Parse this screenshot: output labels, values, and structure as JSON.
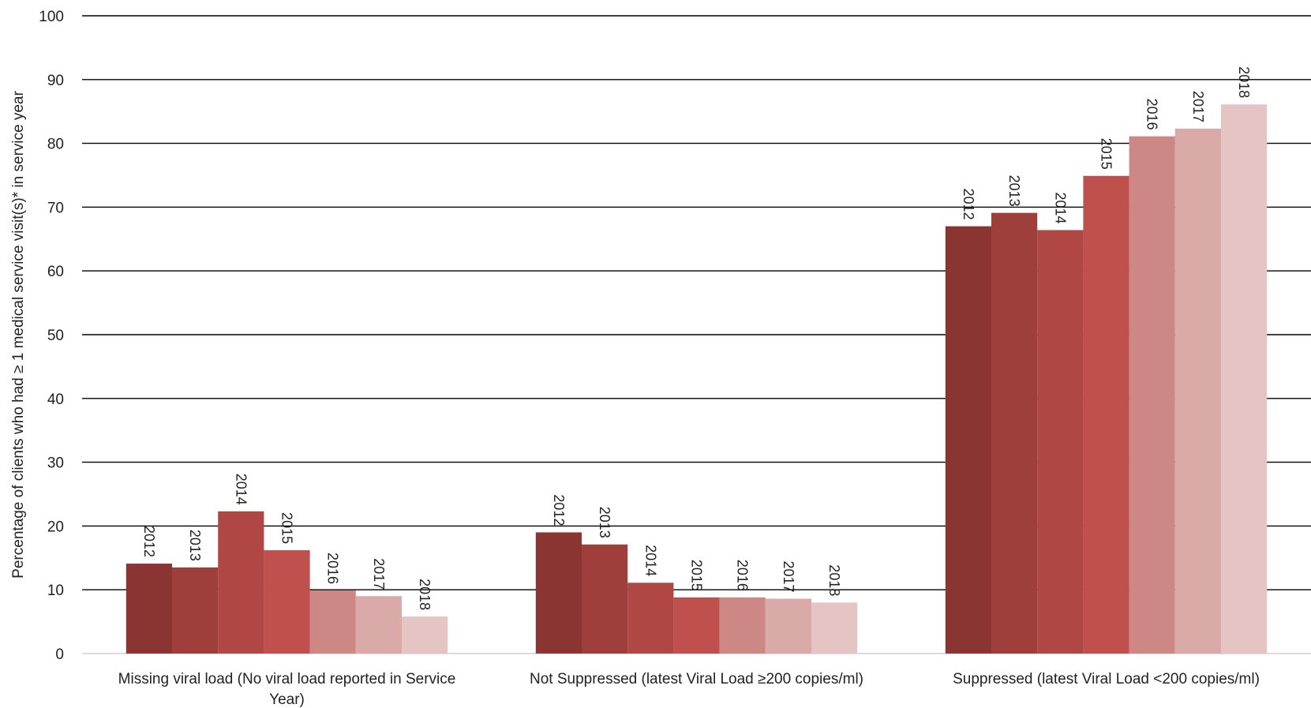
{
  "chart_data": {
    "type": "bar",
    "title": "",
    "xlabel": "",
    "ylabel": "Percentage of clients who had ≥ 1 medical service visit(s)* in service year",
    "ylim": [
      0,
      100
    ],
    "yticks": [
      "0",
      "10",
      "20",
      "30",
      "40",
      "50",
      "60",
      "70",
      "80",
      "90",
      "100"
    ],
    "grid": true,
    "legend": "none",
    "categories": [
      [
        "Missing viral load (No viral load reported in Service",
        "Year)"
      ],
      [
        "Not Suppressed (latest Viral Load ≥200 copies/ml)"
      ],
      [
        "Suppressed (latest Viral Load <200 copies/ml)"
      ]
    ],
    "series": [
      {
        "name": "2012",
        "color": "#8B3533",
        "values": [
          14.1,
          19.0,
          67.0
        ]
      },
      {
        "name": "2013",
        "color": "#9E3F3C",
        "values": [
          13.5,
          17.1,
          69.1
        ]
      },
      {
        "name": "2014",
        "color": "#AF4845",
        "values": [
          22.3,
          11.1,
          66.4
        ]
      },
      {
        "name": "2015",
        "color": "#C0504D",
        "values": [
          16.2,
          8.8,
          74.9
        ]
      },
      {
        "name": "2016",
        "color": "#CD8886",
        "values": [
          9.9,
          8.8,
          81.1
        ]
      },
      {
        "name": "2017",
        "color": "#DAAAA9",
        "values": [
          9.0,
          8.6,
          82.3
        ]
      },
      {
        "name": "2018",
        "color": "#E5C5C4",
        "values": [
          5.8,
          8.0,
          86.1
        ]
      }
    ]
  }
}
